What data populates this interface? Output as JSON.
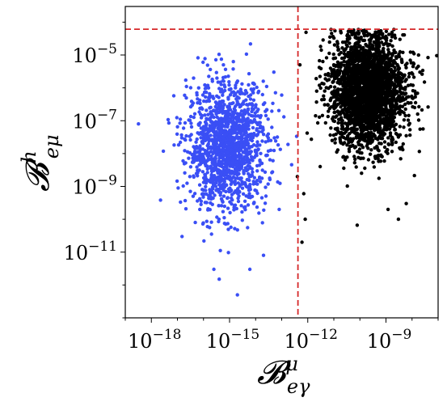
{
  "chart_data": {
    "type": "scatter",
    "title": "",
    "xlabel_main": "𝓑",
    "xlabel_sup": "μ",
    "xlabel_sub": "eγ",
    "ylabel_main": "𝓑",
    "ylabel_sup": "h",
    "ylabel_sub": "eμ",
    "x_scale": "log",
    "y_scale": "log",
    "xlim": [
      1e-19,
      1e-07
    ],
    "ylim": [
      1e-13,
      0.0003
    ],
    "grid": false,
    "legend": "none",
    "x_ticks": [
      {
        "value": 1e-18,
        "base": "10",
        "exp": "−18"
      },
      {
        "value": 1e-15,
        "base": "10",
        "exp": "−15"
      },
      {
        "value": 1e-12,
        "base": "10",
        "exp": "−12"
      },
      {
        "value": 1e-09,
        "base": "10",
        "exp": "−9"
      }
    ],
    "y_ticks": [
      {
        "value": 1e-05,
        "base": "10",
        "exp": "−5"
      },
      {
        "value": 1e-07,
        "base": "10",
        "exp": "−7"
      },
      {
        "value": 1e-09,
        "base": "10",
        "exp": "−9"
      },
      {
        "value": 1e-11,
        "base": "10",
        "exp": "−11"
      }
    ],
    "reference_lines": [
      {
        "orientation": "vertical",
        "value": 4.2e-13,
        "color": "#d62728",
        "style": "dashed"
      },
      {
        "orientation": "horizontal",
        "value": 6.1e-05,
        "color": "#d62728",
        "style": "dashed"
      }
    ],
    "series": [
      {
        "color": "#3a4ff5",
        "cluster": {
          "x_center_log10": -15.1,
          "y_center_log10": -7.8,
          "x_spread_log10": 0.75,
          "y_spread_log10": 0.95,
          "count": 1500
        },
        "values": [
          [
            3.2e-19,
            8e-08
          ],
          [
            1.5e-17,
            3e-11
          ],
          [
            4e-17,
            5e-10
          ],
          [
            2.5e-16,
            3e-12
          ],
          [
            5e-14,
            3e-06
          ],
          [
            1e-13,
            6e-07
          ],
          [
            2e-15,
            5e-13
          ],
          [
            6e-15,
            3e-12
          ],
          [
            3e-17,
            2e-09
          ],
          [
            8e-14,
            2e-10
          ],
          [
            2e-14,
            8e-12
          ],
          [
            4e-16,
            1.5e-12
          ]
        ]
      },
      {
        "color": "#000000",
        "cluster": {
          "x_center_log10": -9.7,
          "y_center_log10": -6.1,
          "x_spread_log10": 0.7,
          "y_spread_log10": 0.85,
          "count": 2600
        },
        "values": [
          [
            6e-13,
            2e-11
          ],
          [
            5e-13,
            5e-06
          ],
          [
            8e-13,
            1e-10
          ],
          [
            3e-12,
            4e-09
          ],
          [
            1e-11,
            5e-06
          ],
          [
            1.2e-09,
            2e-10
          ],
          [
            6e-09,
            3e-10
          ],
          [
            3e-09,
            1e-10
          ],
          [
            2e-08,
            3e-06
          ],
          [
            3e-08,
            1.5e-06
          ],
          [
            1e-08,
            5e-07
          ],
          [
            7e-13,
            6e-10
          ],
          [
            4e-13,
            2e-09
          ]
        ]
      }
    ]
  }
}
